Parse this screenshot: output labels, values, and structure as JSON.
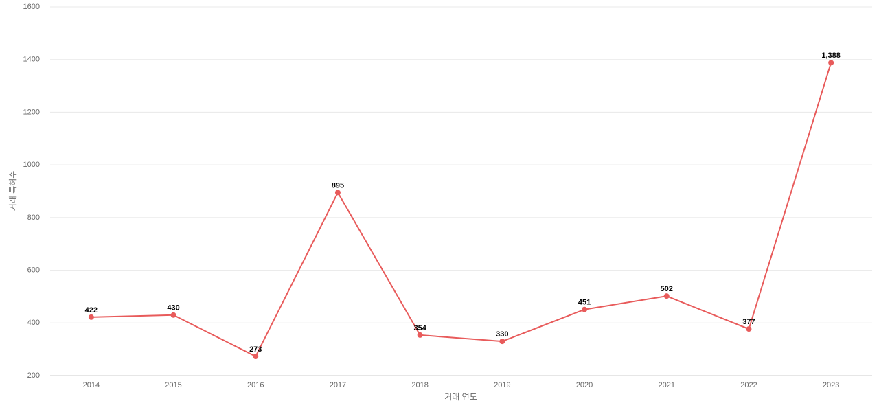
{
  "chart_data": {
    "type": "line",
    "x_label": "거래 연도",
    "y_label": "거래 특허수",
    "categories": [
      "2014",
      "2015",
      "2016",
      "2017",
      "2018",
      "2019",
      "2020",
      "2021",
      "2022",
      "2023"
    ],
    "series": [
      {
        "name": "거래 특허수",
        "color": "#e85b5b",
        "values": [
          422,
          430,
          273,
          895,
          354,
          330,
          451,
          502,
          377,
          1388
        ],
        "value_labels": [
          "422",
          "430",
          "273",
          "895",
          "354",
          "330",
          "451",
          "502",
          "377",
          "1,388"
        ]
      }
    ],
    "ylim": [
      200,
      1600
    ],
    "yticks": [
      200,
      400,
      600,
      800,
      1000,
      1200,
      1400,
      1600
    ],
    "grid": true
  }
}
